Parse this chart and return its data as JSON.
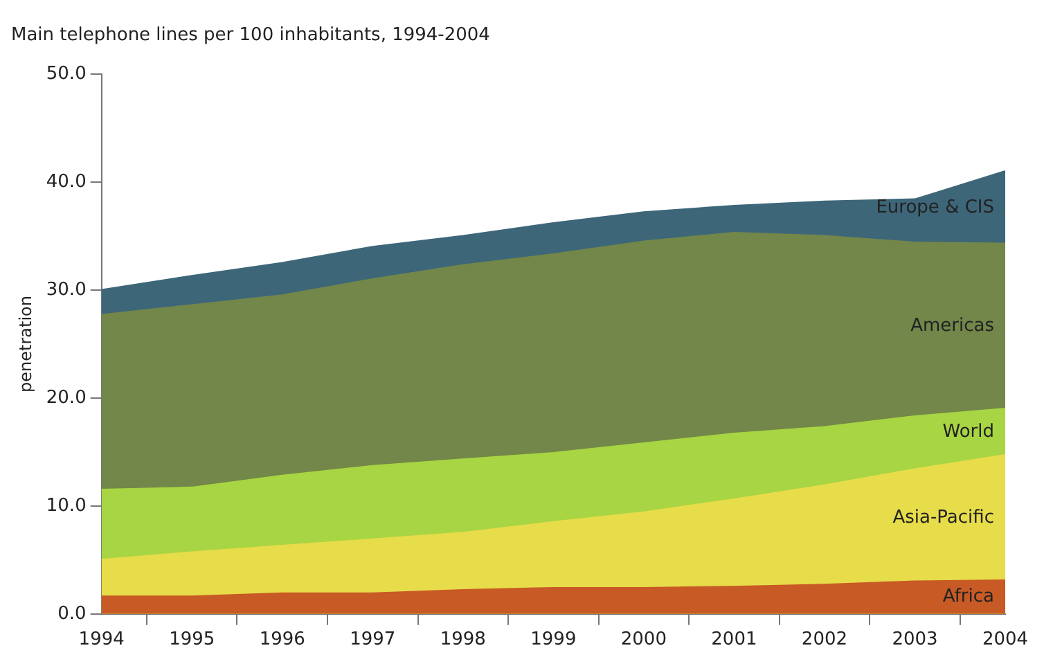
{
  "chart_data": {
    "type": "area",
    "title": "Main telephone lines per 100 inhabitants, 1994-2004",
    "ylabel": "penetration",
    "categories": [
      "1994",
      "1995",
      "1996",
      "1997",
      "1998",
      "1999",
      "2000",
      "2001",
      "2002",
      "2003",
      "2004"
    ],
    "series": [
      {
        "name": "Europe & CIS",
        "color": "#3e6679",
        "values": [
          30.0,
          31.3,
          32.5,
          34.0,
          35.0,
          36.2,
          37.2,
          37.8,
          38.2,
          38.4,
          41.0
        ]
      },
      {
        "name": "Americas",
        "color": "#728749",
        "values": [
          27.7,
          28.6,
          29.5,
          31.0,
          32.3,
          33.3,
          34.5,
          35.3,
          35.0,
          34.4,
          34.3
        ]
      },
      {
        "name": "World",
        "color": "#a8d543",
        "values": [
          11.5,
          11.7,
          12.8,
          13.7,
          14.3,
          14.9,
          15.8,
          16.7,
          17.3,
          18.3,
          19.0
        ]
      },
      {
        "name": "Asia-Pacific",
        "color": "#e7dc4a",
        "values": [
          5.0,
          5.7,
          6.3,
          6.9,
          7.5,
          8.5,
          9.4,
          10.6,
          11.9,
          13.4,
          14.7
        ]
      },
      {
        "name": "Africa",
        "color": "#c85a25",
        "values": [
          1.6,
          1.6,
          1.9,
          1.9,
          2.2,
          2.4,
          2.4,
          2.5,
          2.7,
          3.0,
          3.1
        ]
      }
    ],
    "ylim": [
      0,
      50
    ],
    "yticks": [
      {
        "value": 0,
        "label": "0.0"
      },
      {
        "value": 10,
        "label": "10.0"
      },
      {
        "value": 20,
        "label": "20.0"
      },
      {
        "value": 30,
        "label": "30.0"
      },
      {
        "value": 40,
        "label": "40.0"
      },
      {
        "value": 50,
        "label": "50.0"
      }
    ],
    "grid": false,
    "legend": false,
    "marker": "none",
    "line_style": "solid"
  }
}
